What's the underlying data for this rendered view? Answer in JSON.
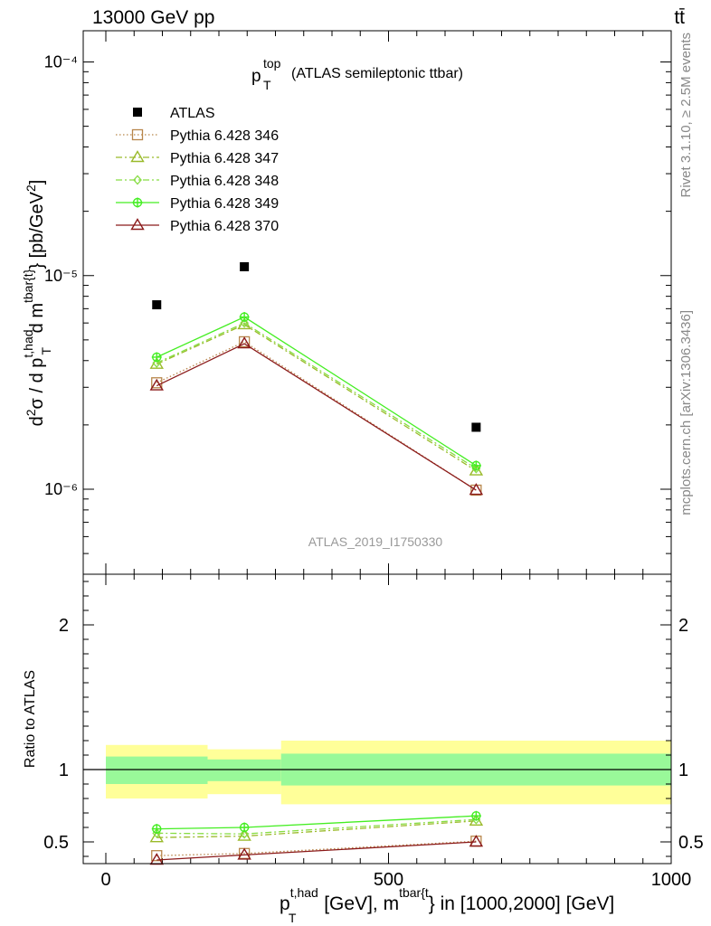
{
  "header": {
    "energy": "13000 GeV pp",
    "process": "tt̄"
  },
  "side_labels": {
    "rivet": "Rivet 3.1.10, ≥ 2.5M events",
    "mcplots": "mcplots.cern.ch [arXiv:1306.3436]"
  },
  "chart_data": [
    {
      "type": "line",
      "panel": "main",
      "title_main": "p",
      "title_sup": "top",
      "title_sub": "T",
      "title_rest": "(ATLAS semileptonic ttbar)",
      "ylabel": "d²σ / d p_T^{t,had} d m^{tbar{t}} [pb/GeV²]",
      "yscale": "log",
      "ylim": [
        4e-07,
        0.00014
      ],
      "xlim": [
        -40,
        1000
      ],
      "y_tick_labels": [
        "10⁻⁶",
        "10⁻⁵",
        "10⁻⁴"
      ],
      "watermark": "ATLAS_2019_I1750330",
      "legend_position": "top-left",
      "x": [
        90,
        245,
        655
      ],
      "series": [
        {
          "name": "ATLAS",
          "values": [
            7.3e-06,
            1.1e-05,
            1.95e-06
          ],
          "color": "#000000",
          "marker": "square-filled",
          "line": "none"
        },
        {
          "name": "Pythia 6.428 346",
          "values": [
            3.15e-06,
            4.9e-06,
            9.9e-07
          ],
          "color": "#b8864b",
          "marker": "square-open",
          "line": "dotted"
        },
        {
          "name": "Pythia 6.428 347",
          "values": [
            3.85e-06,
            5.9e-06,
            1.22e-06
          ],
          "color": "#9aba2a",
          "marker": "triangle-open",
          "line": "dashdot"
        },
        {
          "name": "Pythia 6.428 348",
          "values": [
            3.9e-06,
            6e-06,
            1.25e-06
          ],
          "color": "#88dd44",
          "marker": "diamond-open",
          "line": "dashdot"
        },
        {
          "name": "Pythia 6.428 349",
          "values": [
            4.15e-06,
            6.4e-06,
            1.29e-06
          ],
          "color": "#44ee22",
          "marker": "cross-circle",
          "line": "solid"
        },
        {
          "name": "Pythia 6.428 370",
          "values": [
            3.05e-06,
            4.8e-06,
            9.9e-07
          ],
          "color": "#8b1a1a",
          "marker": "triangle-open",
          "line": "solid"
        }
      ]
    },
    {
      "type": "line",
      "panel": "ratio",
      "ylabel": "Ratio to ATLAS",
      "ylim": [
        0.35,
        2.35
      ],
      "xlim": [
        -40,
        1000
      ],
      "y_tick_labels": [
        "0.5",
        "1",
        "2"
      ],
      "x_tick_labels": [
        "0",
        "500",
        "1000"
      ],
      "xlabel": "p_T^{t,had} [GeV], m^{tbar{t}} in [1000,2000] [GeV]",
      "bands": [
        {
          "x_range": [
            0,
            180
          ],
          "green": [
            0.9,
            1.09
          ],
          "yellow": [
            0.8,
            1.17
          ]
        },
        {
          "x_range": [
            180,
            310
          ],
          "green": [
            0.92,
            1.07
          ],
          "yellow": [
            0.83,
            1.14
          ]
        },
        {
          "x_range": [
            310,
            1000
          ],
          "green": [
            0.89,
            1.11
          ],
          "yellow": [
            0.76,
            1.2
          ]
        }
      ],
      "x": [
        90,
        245,
        655
      ],
      "series": [
        {
          "name": "Pythia 6.428 346",
          "values": [
            0.405,
            0.42,
            0.505
          ],
          "color": "#b8864b",
          "marker": "square-open",
          "line": "dotted"
        },
        {
          "name": "Pythia 6.428 347",
          "values": [
            0.53,
            0.54,
            0.645
          ],
          "color": "#9aba2a",
          "marker": "triangle-open",
          "line": "dashdot"
        },
        {
          "name": "Pythia 6.428 348",
          "values": [
            0.56,
            0.555,
            0.655
          ],
          "color": "#88dd44",
          "marker": "diamond-open",
          "line": "dashdot"
        },
        {
          "name": "Pythia 6.428 349",
          "values": [
            0.59,
            0.6,
            0.68
          ],
          "color": "#44ee22",
          "marker": "cross-circle",
          "line": "solid"
        },
        {
          "name": "Pythia 6.428 370",
          "values": [
            0.375,
            0.41,
            0.5
          ],
          "color": "#8b1a1a",
          "marker": "triangle-open",
          "line": "solid"
        }
      ]
    }
  ]
}
